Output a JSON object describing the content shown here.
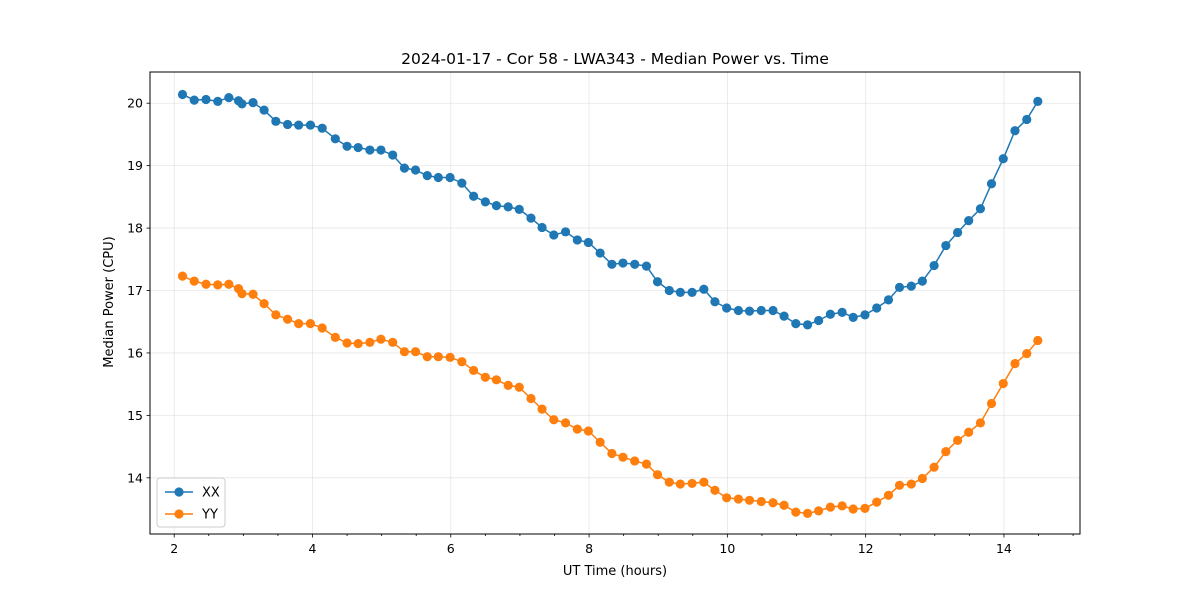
{
  "chart_data": {
    "type": "line",
    "title": "2024-01-17 - Cor 58 - LWA343 - Median Power vs. Time",
    "xlabel": "UT Time (hours)",
    "ylabel": "Median Power (CPU)",
    "xlim": [
      1.65,
      15.1
    ],
    "ylim": [
      13.1,
      20.5
    ],
    "xticks": [
      2,
      4,
      6,
      8,
      10,
      12,
      14
    ],
    "yticks": [
      14,
      15,
      16,
      17,
      18,
      19,
      20
    ],
    "grid": true,
    "legend_position": "lower-left",
    "x": [
      2.12,
      2.29,
      2.46,
      2.63,
      2.79,
      2.93,
      2.98,
      3.14,
      3.3,
      3.47,
      3.64,
      3.8,
      3.97,
      4.14,
      4.33,
      4.5,
      4.66,
      4.83,
      4.99,
      5.16,
      5.33,
      5.49,
      5.66,
      5.82,
      5.99,
      6.16,
      6.33,
      6.5,
      6.66,
      6.83,
      6.99,
      7.16,
      7.32,
      7.49,
      7.66,
      7.83,
      7.99,
      8.16,
      8.33,
      8.49,
      8.66,
      8.83,
      8.99,
      9.16,
      9.32,
      9.49,
      9.66,
      9.82,
      9.99,
      10.16,
      10.32,
      10.49,
      10.66,
      10.82,
      10.99,
      11.16,
      11.32,
      11.49,
      11.66,
      11.82,
      11.99,
      12.16,
      12.33,
      12.49,
      12.66,
      12.82,
      12.99,
      13.16,
      13.33,
      13.49,
      13.66,
      13.82,
      13.99,
      14.16,
      14.33,
      14.49
    ],
    "series": [
      {
        "name": "XX",
        "color": "#1f77b4",
        "values": [
          20.14,
          20.05,
          20.06,
          20.03,
          20.09,
          20.04,
          19.99,
          20.01,
          19.89,
          19.71,
          19.66,
          19.65,
          19.65,
          19.6,
          19.43,
          19.31,
          19.29,
          19.25,
          19.25,
          19.17,
          18.96,
          18.93,
          18.84,
          18.81,
          18.81,
          18.72,
          18.51,
          18.42,
          18.36,
          18.34,
          18.3,
          18.16,
          18.01,
          17.89,
          17.94,
          17.81,
          17.77,
          17.6,
          17.42,
          17.44,
          17.42,
          17.39,
          17.14,
          17.0,
          16.97,
          16.97,
          17.02,
          16.82,
          16.72,
          16.68,
          16.67,
          16.68,
          16.68,
          16.59,
          16.47,
          16.45,
          16.52,
          16.62,
          16.65,
          16.57,
          16.61,
          16.72,
          16.85,
          17.05,
          17.07,
          17.15,
          17.4,
          17.72,
          17.93,
          18.12,
          18.31,
          18.71,
          19.11,
          19.56,
          19.74,
          20.03
        ]
      },
      {
        "name": "YY",
        "color": "#ff7f0e",
        "values": [
          17.23,
          17.15,
          17.1,
          17.09,
          17.1,
          17.03,
          16.95,
          16.94,
          16.79,
          16.61,
          16.54,
          16.47,
          16.47,
          16.4,
          16.25,
          16.16,
          16.15,
          16.17,
          16.22,
          16.17,
          16.02,
          16.02,
          15.94,
          15.94,
          15.93,
          15.86,
          15.72,
          15.61,
          15.57,
          15.48,
          15.45,
          15.27,
          15.1,
          14.93,
          14.88,
          14.78,
          14.75,
          14.57,
          14.39,
          14.33,
          14.27,
          14.22,
          14.05,
          13.93,
          13.9,
          13.91,
          13.93,
          13.8,
          13.68,
          13.66,
          13.64,
          13.62,
          13.6,
          13.56,
          13.45,
          13.43,
          13.47,
          13.53,
          13.55,
          13.5,
          13.51,
          13.61,
          13.72,
          13.88,
          13.9,
          13.99,
          14.17,
          14.42,
          14.6,
          14.73,
          14.88,
          15.19,
          15.51,
          15.83,
          15.99,
          16.2
        ]
      }
    ]
  }
}
